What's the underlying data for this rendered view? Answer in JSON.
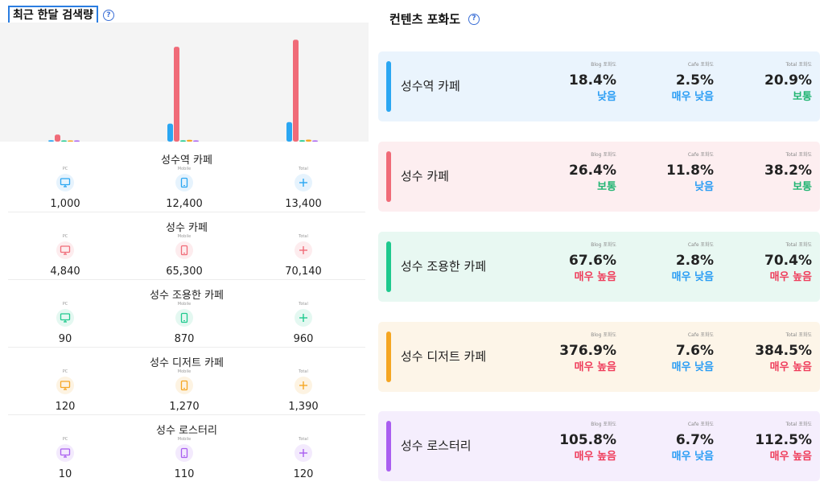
{
  "search_volume": {
    "title": "최근 한달 검색량",
    "help_icon": "question-circle-icon",
    "labels": {
      "pc": "PC",
      "mobile": "Mobile",
      "total": "Total"
    },
    "keywords": [
      {
        "name": "성수역 카페",
        "pc": "1,000",
        "mobile": "12,400",
        "total": "13,400",
        "color": "#2aa6f2",
        "bg": "#e6f3fd"
      },
      {
        "name": "성수 카페",
        "pc": "4,840",
        "mobile": "65,300",
        "total": "70,140",
        "color": "#f06b78",
        "bg": "#fdecee"
      },
      {
        "name": "성수 조용한 카페",
        "pc": "90",
        "mobile": "870",
        "total": "960",
        "color": "#1ec98e",
        "bg": "#e4f8f1"
      },
      {
        "name": "성수 디저트 카페",
        "pc": "120",
        "mobile": "1,270",
        "total": "1,390",
        "color": "#f5a623",
        "bg": "#fdf3e2"
      },
      {
        "name": "성수 로스터리",
        "pc": "10",
        "mobile": "110",
        "total": "120",
        "color": "#a95ef0",
        "bg": "#f3eafd"
      }
    ]
  },
  "chart_data": {
    "type": "bar",
    "categories": [
      "PC",
      "Mobile",
      "Total"
    ],
    "series": [
      {
        "name": "성수역 카페",
        "values": [
          1000,
          12400,
          13400
        ],
        "color": "#2aa6f2"
      },
      {
        "name": "성수 카페",
        "values": [
          4840,
          65300,
          70140
        ],
        "color": "#f06b78"
      },
      {
        "name": "성수 조용한 카페",
        "values": [
          90,
          870,
          960
        ],
        "color": "#1ec98e"
      },
      {
        "name": "성수 디저트 카페",
        "values": [
          120,
          1270,
          1390
        ],
        "color": "#f5a623"
      },
      {
        "name": "성수 로스터리",
        "values": [
          10,
          110,
          120
        ],
        "color": "#a95ef0"
      }
    ],
    "ylim": [
      0,
      72000
    ],
    "grid": false,
    "legend": "none"
  },
  "saturation": {
    "title": "컨텐츠 포화도",
    "help_icon": "question-circle-icon",
    "labels": {
      "blog": "Blog 포화도",
      "cafe": "Cafe 포화도",
      "total": "Total 포화도"
    },
    "level_colors": {
      "낮음": "#2a9df4",
      "매우 낮음": "#2a9df4",
      "보통": "#22b573",
      "매우 높음": "#ef3e5c"
    },
    "cards": [
      {
        "name": "성수역 카페",
        "bar": "#2aa6f2",
        "bg": "#eaf4fd",
        "blog": "18.4%",
        "blog_level": "낮음",
        "cafe": "2.5%",
        "cafe_level": "매우 낮음",
        "total": "20.9%",
        "total_level": "보통"
      },
      {
        "name": "성수 카페",
        "bar": "#f06b78",
        "bg": "#fdeef0",
        "blog": "26.4%",
        "blog_level": "보통",
        "cafe": "11.8%",
        "cafe_level": "낮음",
        "total": "38.2%",
        "total_level": "보통"
      },
      {
        "name": "성수 조용한 카페",
        "bar": "#1ec98e",
        "bg": "#e8f8f2",
        "blog": "67.6%",
        "blog_level": "매우 높음",
        "cafe": "2.8%",
        "cafe_level": "매우 낮음",
        "total": "70.4%",
        "total_level": "매우 높음"
      },
      {
        "name": "성수 디저트 카페",
        "bar": "#f5a623",
        "bg": "#fdf5e8",
        "blog": "376.9%",
        "blog_level": "매우 높음",
        "cafe": "7.6%",
        "cafe_level": "매우 낮음",
        "total": "384.5%",
        "total_level": "매우 높음"
      },
      {
        "name": "성수 로스터리",
        "bar": "#a95ef0",
        "bg": "#f5eefd",
        "blog": "105.8%",
        "blog_level": "매우 높음",
        "cafe": "6.7%",
        "cafe_level": "매우 낮음",
        "total": "112.5%",
        "total_level": "매우 높음"
      }
    ]
  }
}
